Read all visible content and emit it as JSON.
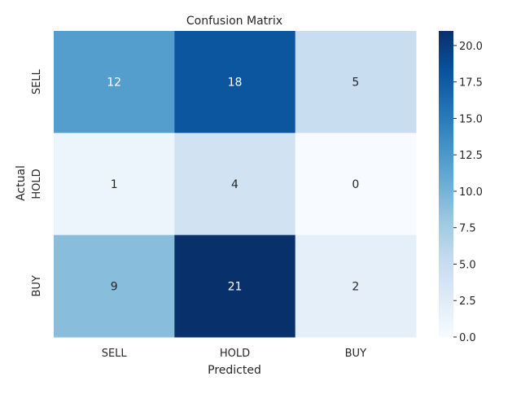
{
  "chart_data": {
    "type": "heatmap",
    "title": "Confusion Matrix",
    "xlabel": "Predicted",
    "ylabel": "Actual",
    "x_categories": [
      "SELL",
      "HOLD",
      "BUY"
    ],
    "y_categories": [
      "SELL",
      "HOLD",
      "BUY"
    ],
    "values": [
      [
        12,
        18,
        5
      ],
      [
        1,
        4,
        0
      ],
      [
        9,
        21,
        2
      ]
    ],
    "colorbar": {
      "range": [
        0,
        21
      ],
      "ticks": [
        "0.0",
        "2.5",
        "5.0",
        "7.5",
        "10.0",
        "12.5",
        "15.0",
        "17.5",
        "20.0"
      ],
      "tick_values": [
        0,
        2.5,
        5,
        7.5,
        10,
        12.5,
        15,
        17.5,
        20
      ]
    },
    "colormap": "Blues"
  }
}
